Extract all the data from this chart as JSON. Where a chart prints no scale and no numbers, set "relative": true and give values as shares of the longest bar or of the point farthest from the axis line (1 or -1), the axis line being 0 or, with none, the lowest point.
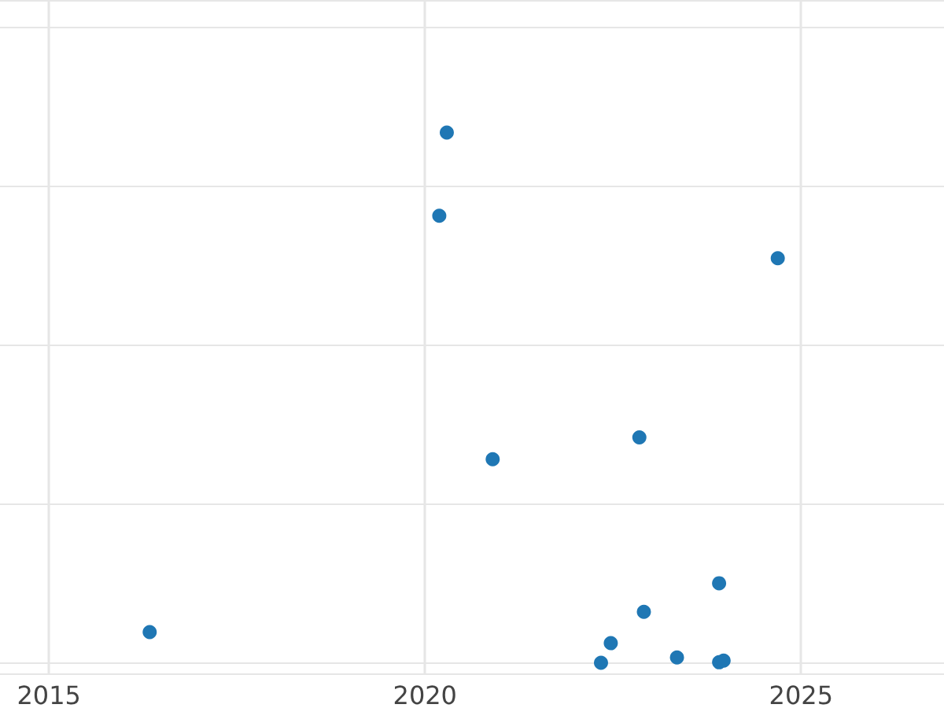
{
  "chart_data": {
    "type": "scatter",
    "relative": true,
    "x": [
      2016.34,
      2020.29,
      2020.19,
      2024.69,
      2020.9,
      2022.85,
      2023.91,
      2022.91,
      2022.47,
      2023.35,
      2022.34,
      2023.91,
      2023.97
    ],
    "series": [
      {
        "color": "#1f77b4",
        "values": [
          0.058,
          1,
          0.843,
          0.763,
          0.384,
          0.425,
          0.15,
          0.096,
          0.037,
          0.01,
          0,
          0.001,
          0.004
        ]
      }
    ],
    "xlim": [
      2014.35,
      2026.9
    ],
    "xticks": [
      2015,
      2020,
      2025
    ],
    "grid": true,
    "marker": "circle",
    "tick_labels": "x"
  }
}
